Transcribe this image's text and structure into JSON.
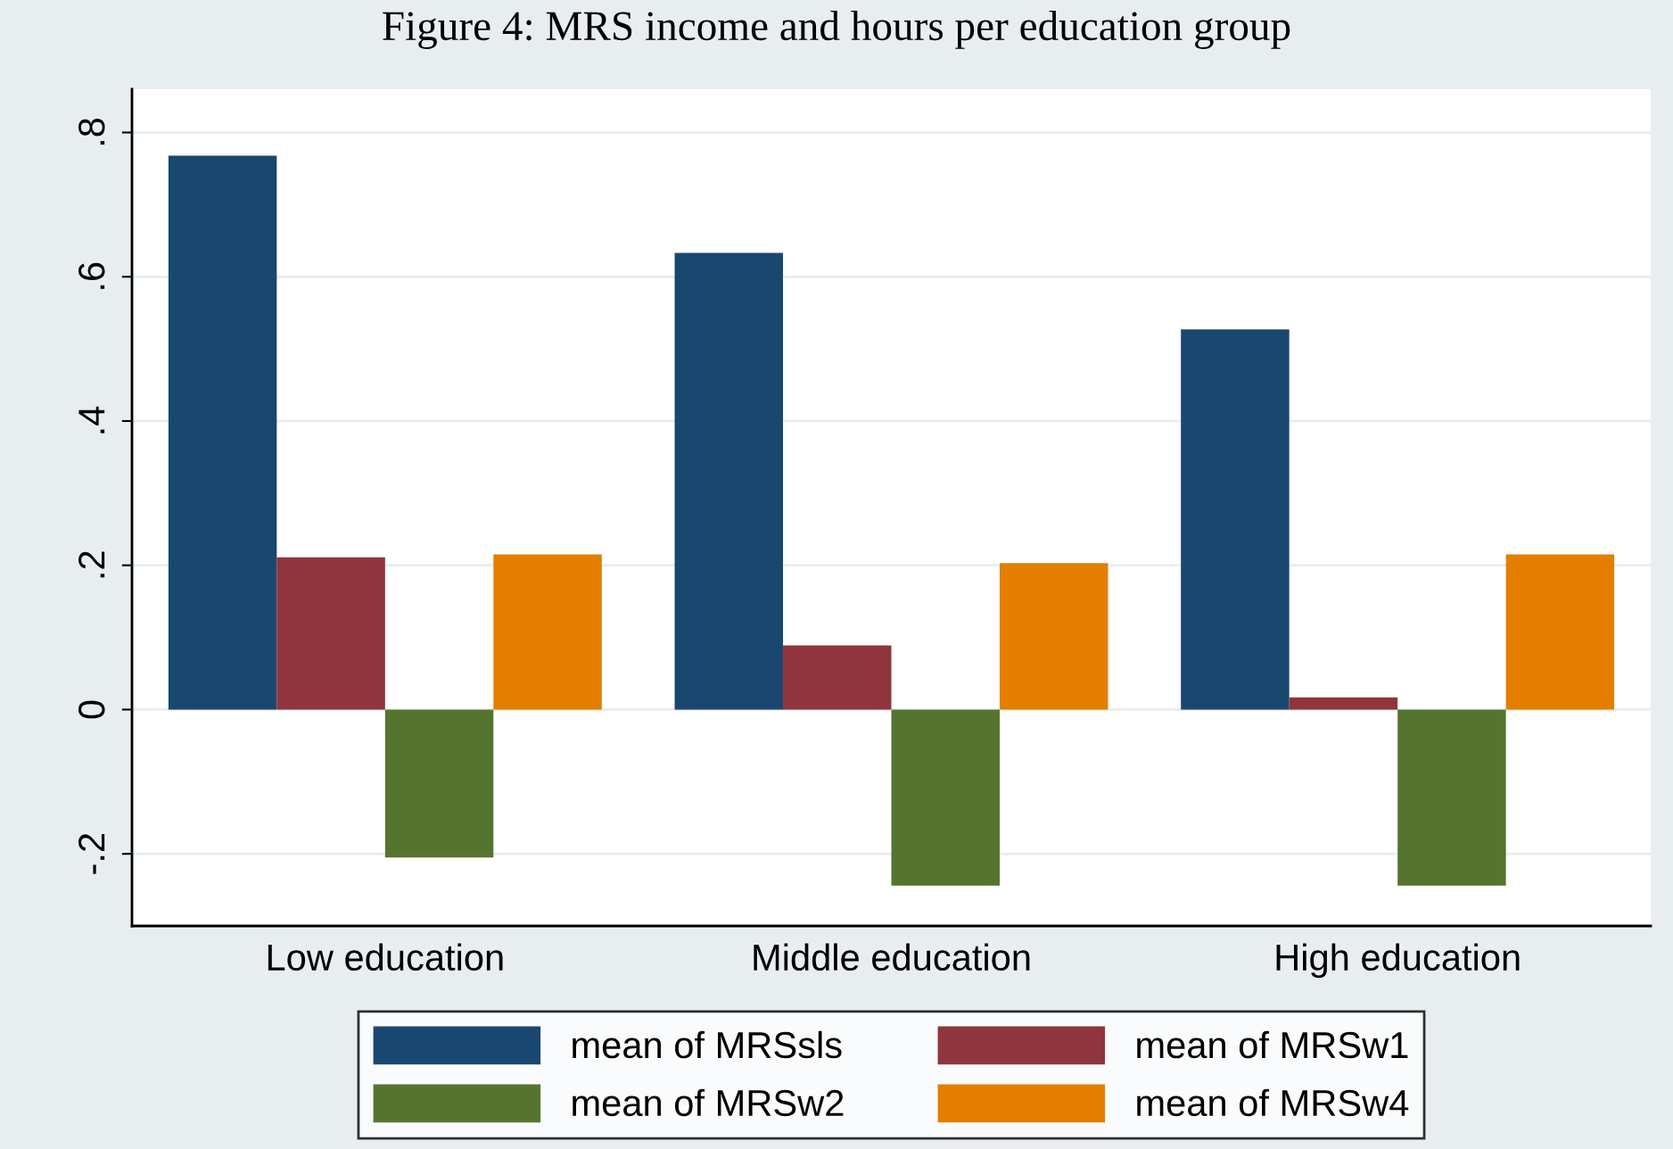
{
  "chart_data": {
    "type": "bar",
    "title": "Figure 4: MRS income and hours per education group",
    "categories": [
      "Low education",
      "Middle education",
      "High education"
    ],
    "series": [
      {
        "name": "mean of MRSsls",
        "color": "#1a476f",
        "values": [
          0.768,
          0.633,
          0.527
        ]
      },
      {
        "name": "mean of MRSw1",
        "color": "#90353b",
        "values": [
          0.211,
          0.089,
          0.017
        ]
      },
      {
        "name": "mean of MRSw2",
        "color": "#55752f",
        "values": [
          -0.205,
          -0.244,
          -0.244
        ]
      },
      {
        "name": "mean of MRSw4",
        "color": "#e37e00",
        "values": [
          0.215,
          0.203,
          0.215
        ]
      }
    ],
    "ylim": [
      -0.3,
      0.86
    ],
    "yticks": [
      {
        "value": -0.2,
        "label": "-.2"
      },
      0,
      {
        "value": 0.2,
        "label": ".2"
      },
      {
        "value": 0.4,
        "label": ".4"
      },
      {
        "value": 0.6,
        "label": ".6"
      },
      {
        "value": 0.8,
        "label": ".8"
      }
    ],
    "grid": "y",
    "legend": "bottom"
  }
}
